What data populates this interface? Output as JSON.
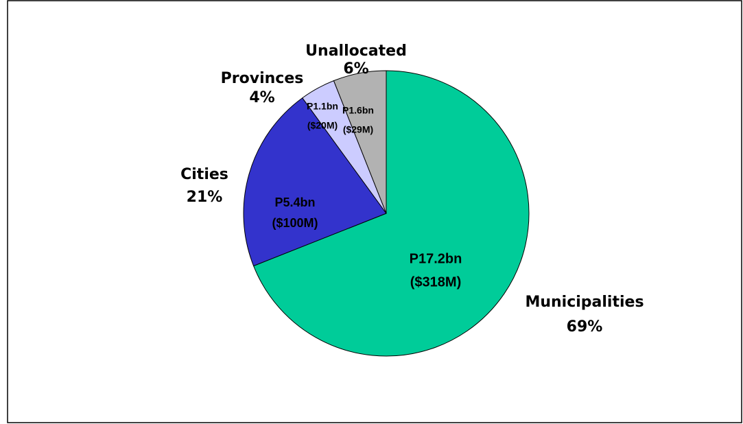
{
  "chart_data": {
    "type": "pie",
    "categories": [
      "Municipalities",
      "Cities",
      "Provinces",
      "Unallocated"
    ],
    "values": [
      69,
      21,
      4,
      6
    ],
    "value_labels": [
      "69%",
      "21%",
      "4%",
      "6%"
    ],
    "colors": [
      "#00cc99",
      "#3333cc",
      "#ccccff",
      "#b2b2b2"
    ],
    "slice_labels": [
      "P17.2bn",
      "P5.4bn",
      "P1.1bn",
      "P1.6bn"
    ],
    "slice_sublabels": [
      "($318M)",
      "($100M)",
      "($20M)",
      "($29M)"
    ]
  }
}
